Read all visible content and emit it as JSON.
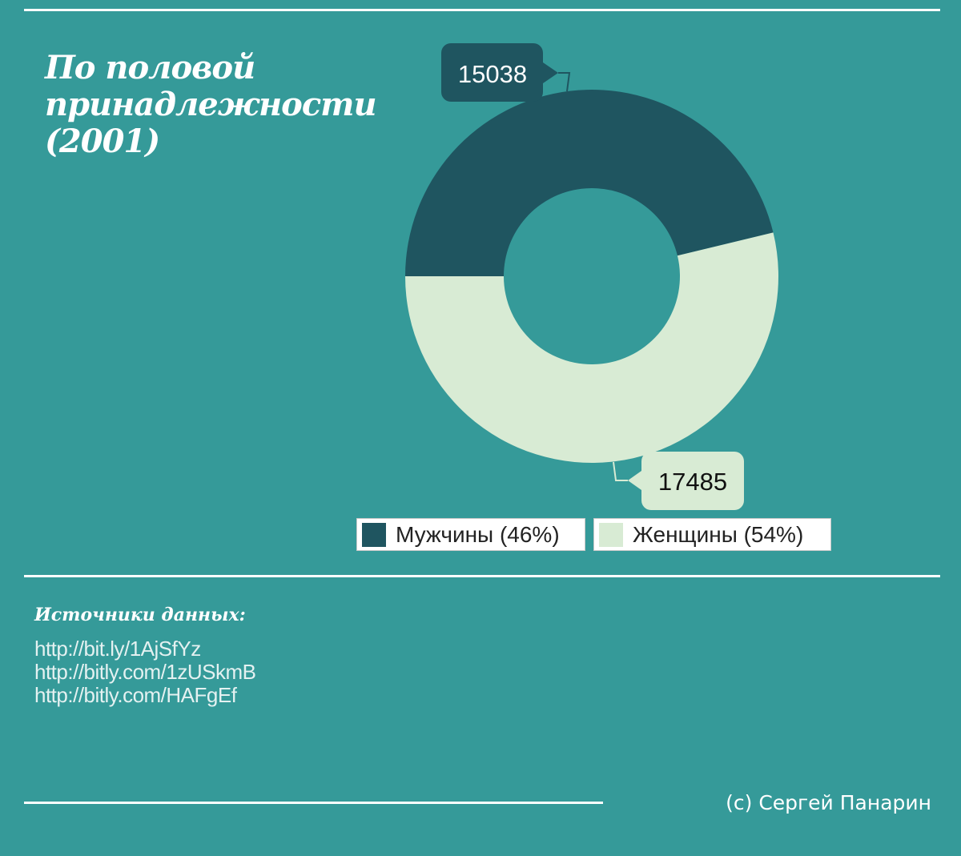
{
  "title_lines": [
    "По половой",
    "принадлежности",
    "(2001)"
  ],
  "chart_data": {
    "type": "pie",
    "variant": "donut",
    "slices": [
      {
        "label": "Мужчины",
        "value": 15038,
        "percent_label": "46%",
        "color": "#1f5560",
        "legend": "Мужчины (46%)"
      },
      {
        "label": "Женщины",
        "value": 17485,
        "percent_label": "54%",
        "color": "#d8ebd4",
        "legend": "Женщины (54%)"
      }
    ],
    "data_labels": [
      "15038",
      "17485"
    ],
    "legend_position": "bottom"
  },
  "sources": {
    "title": "Источники данных:",
    "links": [
      "http://bit.ly/1AjSfYz",
      "http://bitly.com/1zUSkmB",
      "http://bitly.com/HAFgEf"
    ]
  },
  "credit": "(с) Сергей Панарин",
  "colors": {
    "background": "#359a99",
    "rule": "#ffffff",
    "callout_dark": "#1f5560",
    "callout_light": "#d8ebd4"
  }
}
